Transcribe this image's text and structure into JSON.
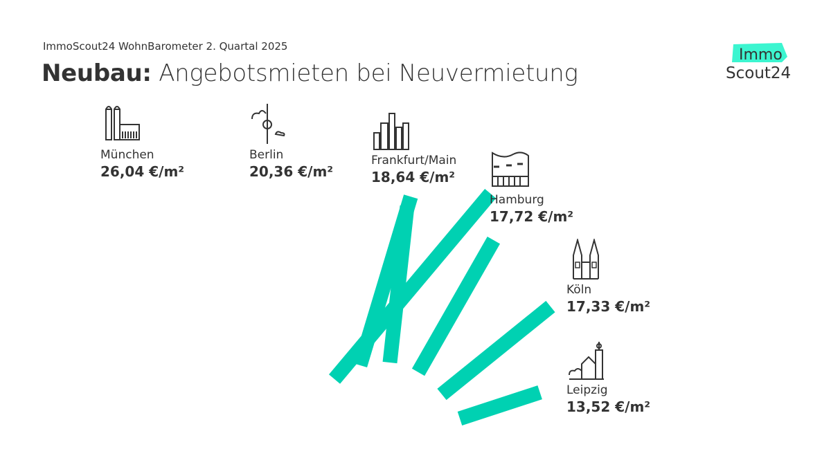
{
  "header": {
    "subtitle": "ImmoScout24 WohnBarometer 2. Quartal 2025",
    "title_bold": "Neubau:",
    "title_rest": " Angebotsmieten bei Neuvermietung"
  },
  "logo": {
    "top": "Immo",
    "bottom": "Scout24",
    "accent": "#00D9B1"
  },
  "chart_data": {
    "type": "bar",
    "subtype": "radial",
    "unit": "€/m²",
    "categories": [
      "München",
      "Berlin",
      "Frankfurt/Main",
      "Hamburg",
      "Köln",
      "Leipzig"
    ],
    "values": [
      26.04,
      20.36,
      18.64,
      17.72,
      17.33,
      13.52
    ],
    "labels": [
      "26,04 €/m²",
      "20,36 €/m²",
      "18,64 €/m²",
      "17,72 €/m²",
      "17,33 €/m²",
      "13,52 €/m²"
    ],
    "icons": [
      "frauenkirche-icon",
      "tv-tower-icon",
      "skyline-icon",
      "elbphilharmonie-icon",
      "cathedral-icon",
      "old-town-hall-icon"
    ],
    "bar_color": "#00D1B2"
  }
}
